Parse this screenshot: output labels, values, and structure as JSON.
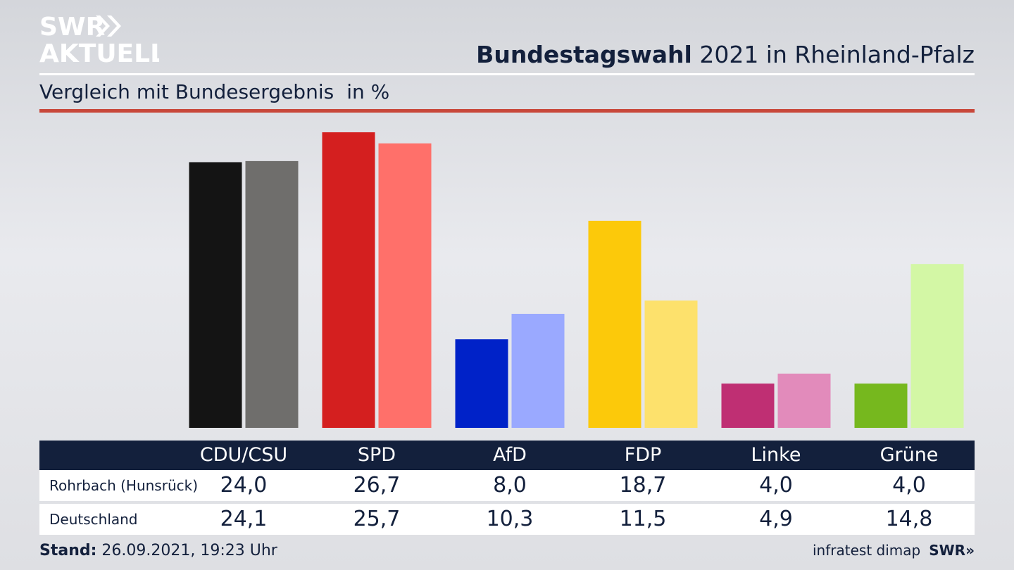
{
  "logo": {
    "line1": "SWR",
    "line2": "AKTUELL"
  },
  "header": {
    "title_bold": "Bundestagswahl",
    "title_rest": "2021 in Rheinland-Pfalz",
    "subtitle": "Vergleich mit Bundesergebnis",
    "unit": "in %"
  },
  "colors": {
    "navy": "#13203c",
    "accent_red": "#c8473a"
  },
  "chart_data": {
    "type": "bar",
    "categories": [
      "CDU/CSU",
      "SPD",
      "AfD",
      "FDP",
      "Linke",
      "Grüne"
    ],
    "series": [
      {
        "name": "Rohrbach (Hunsrück)",
        "values": [
          24.0,
          26.7,
          8.0,
          18.7,
          4.0,
          4.0
        ],
        "colors": [
          "#141414",
          "#d41f1f",
          "#0022c8",
          "#fcc90a",
          "#bf2f73",
          "#76b81e"
        ]
      },
      {
        "name": "Deutschland",
        "values": [
          24.1,
          25.7,
          10.3,
          11.5,
          4.9,
          14.8
        ],
        "colors": [
          "#6f6e6c",
          "#ff706a",
          "#9aa9ff",
          "#fde16c",
          "#e28bbb",
          "#d3f7a5"
        ]
      }
    ],
    "ylim": [
      0,
      26.7
    ]
  },
  "table": {
    "headers": [
      "CDU/CSU",
      "SPD",
      "AfD",
      "FDP",
      "Linke",
      "Grüne"
    ],
    "rows": [
      {
        "label": "Rohrbach (Hunsrück)",
        "values": [
          "24,0",
          "26,7",
          "8,0",
          "18,7",
          "4,0",
          "4,0"
        ]
      },
      {
        "label": "Deutschland",
        "values": [
          "24,1",
          "25,7",
          "10,3",
          "11,5",
          "4,9",
          "14,8"
        ]
      }
    ]
  },
  "footer": {
    "stand_label": "Stand:",
    "stand_value": "26.09.2021, 19:23 Uhr",
    "source": "infratest dimap",
    "brand": "SWR»"
  }
}
